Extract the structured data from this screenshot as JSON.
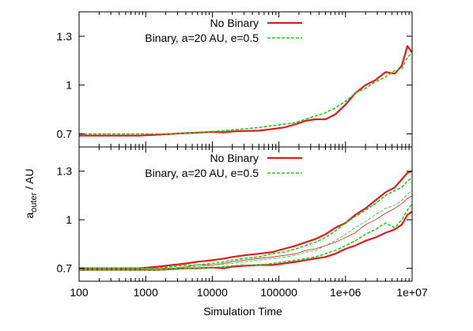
{
  "chart_data": [
    {
      "type": "line",
      "panel": "top",
      "xscale": "log",
      "xlim": [
        100,
        10000000
      ],
      "ylim": [
        0.62,
        1.45
      ],
      "yticks": [
        {
          "v": 0.7,
          "label": "0.7"
        },
        {
          "v": 1.0,
          "label": "1"
        },
        {
          "v": 1.3,
          "label": "1.3"
        }
      ],
      "legend": "top-center",
      "series": [
        {
          "name": "No Binary",
          "color": "#e31a1c",
          "dash": "solid",
          "width": 2.2,
          "in_legend": true,
          "x": [
            100,
            200,
            400,
            800,
            1500,
            2500,
            4000,
            6000,
            10000,
            15000,
            20000,
            30000,
            50000,
            80000,
            120000,
            180000,
            250000,
            350000,
            500000,
            700000,
            1000000,
            1400000,
            2000000,
            2800000,
            4000000,
            5500000,
            7000000,
            8500000,
            10000000
          ],
          "y": [
            0.69,
            0.69,
            0.69,
            0.69,
            0.695,
            0.7,
            0.705,
            0.708,
            0.712,
            0.71,
            0.715,
            0.718,
            0.72,
            0.73,
            0.74,
            0.76,
            0.78,
            0.79,
            0.79,
            0.82,
            0.88,
            0.95,
            1.0,
            1.03,
            1.08,
            1.07,
            1.12,
            1.24,
            1.2
          ]
        },
        {
          "name": "Binary, a=20 AU, e=0.5",
          "color": "#22cc22",
          "dash": "dashed",
          "width": 1.6,
          "in_legend": true,
          "x": [
            100,
            200,
            400,
            800,
            1500,
            2500,
            4000,
            6000,
            10000,
            15000,
            20000,
            30000,
            50000,
            80000,
            120000,
            180000,
            250000,
            350000,
            500000,
            700000,
            1000000,
            1400000,
            2000000,
            2800000,
            4000000,
            5500000,
            7000000,
            8500000,
            10000000
          ],
          "y": [
            0.7,
            0.7,
            0.7,
            0.7,
            0.7,
            0.7,
            0.705,
            0.71,
            0.715,
            0.72,
            0.725,
            0.73,
            0.74,
            0.75,
            0.76,
            0.77,
            0.79,
            0.81,
            0.83,
            0.86,
            0.9,
            0.95,
            0.98,
            1.02,
            1.05,
            1.09,
            1.1,
            1.17,
            1.2
          ]
        }
      ]
    },
    {
      "type": "line",
      "panel": "bottom",
      "xscale": "log",
      "xlim": [
        100,
        10000000
      ],
      "ylim": [
        0.62,
        1.45
      ],
      "yticks": [
        {
          "v": 0.7,
          "label": "0.7"
        },
        {
          "v": 1.0,
          "label": "1"
        },
        {
          "v": 1.3,
          "label": "1.3"
        }
      ],
      "xticks": [
        {
          "v": 100,
          "label": "100"
        },
        {
          "v": 1000,
          "label": "1000"
        },
        {
          "v": 10000,
          "label": "10000"
        },
        {
          "v": 100000,
          "label": "100000"
        },
        {
          "v": 1000000,
          "label": "1e+06"
        },
        {
          "v": 10000000,
          "label": "1e+07"
        }
      ],
      "legend": "top-center",
      "series": [
        {
          "name": "No Binary",
          "color": "#e31a1c",
          "dash": "solid",
          "width": 2.2,
          "in_legend": true,
          "x": [
            100,
            200,
            400,
            800,
            1500,
            2500,
            4000,
            6000,
            10000,
            15000,
            20000,
            30000,
            50000,
            80000,
            120000,
            180000,
            250000,
            350000,
            500000,
            700000,
            1000000,
            1400000,
            2000000,
            2800000,
            4000000,
            5500000,
            7000000,
            8500000,
            10000000
          ],
          "y": [
            0.7,
            0.7,
            0.7,
            0.7,
            0.71,
            0.72,
            0.73,
            0.74,
            0.75,
            0.76,
            0.77,
            0.78,
            0.79,
            0.8,
            0.82,
            0.84,
            0.86,
            0.88,
            0.91,
            0.95,
            0.98,
            1.03,
            1.07,
            1.12,
            1.17,
            1.2,
            1.25,
            1.29,
            1.3
          ]
        },
        {
          "name": "",
          "color": "#e31a1c",
          "dash": "solid",
          "width": 2.2,
          "in_legend": false,
          "x": [
            100,
            200,
            400,
            800,
            1500,
            2500,
            4000,
            6000,
            10000,
            15000,
            20000,
            30000,
            50000,
            80000,
            120000,
            180000,
            250000,
            350000,
            500000,
            700000,
            1000000,
            1400000,
            2000000,
            2800000,
            4000000,
            5500000,
            7000000,
            8500000,
            10000000
          ],
          "y": [
            0.69,
            0.69,
            0.69,
            0.69,
            0.69,
            0.695,
            0.7,
            0.7,
            0.705,
            0.7,
            0.71,
            0.715,
            0.72,
            0.72,
            0.73,
            0.74,
            0.75,
            0.76,
            0.77,
            0.79,
            0.82,
            0.84,
            0.87,
            0.89,
            0.92,
            0.94,
            0.97,
            1.03,
            1.05
          ]
        },
        {
          "name": "",
          "color": "#e31a1c",
          "dash": "solid",
          "width": 0.8,
          "in_legend": false,
          "x": [
            100,
            200,
            400,
            800,
            1500,
            2500,
            4000,
            6000,
            10000,
            15000,
            20000,
            30000,
            50000,
            80000,
            120000,
            180000,
            250000,
            350000,
            500000,
            700000,
            1000000,
            1400000,
            2000000,
            2800000,
            4000000,
            5500000,
            7000000,
            8500000,
            10000000
          ],
          "y": [
            0.695,
            0.695,
            0.695,
            0.7,
            0.7,
            0.7,
            0.71,
            0.72,
            0.72,
            0.73,
            0.74,
            0.75,
            0.76,
            0.77,
            0.78,
            0.79,
            0.81,
            0.82,
            0.84,
            0.86,
            0.89,
            0.92,
            0.97,
            1.0,
            1.04,
            1.07,
            1.1,
            1.13,
            1.15
          ]
        },
        {
          "name": "Binary, a=20 AU, e=0.5",
          "color": "#22cc22",
          "dash": "dashed",
          "width": 1.6,
          "in_legend": true,
          "x": [
            100,
            200,
            400,
            800,
            1500,
            2500,
            4000,
            6000,
            10000,
            15000,
            20000,
            30000,
            50000,
            80000,
            120000,
            180000,
            250000,
            350000,
            500000,
            700000,
            1000000,
            1400000,
            2000000,
            2800000,
            4000000,
            5500000,
            7000000,
            8500000,
            10000000
          ],
          "y": [
            0.7,
            0.7,
            0.7,
            0.7,
            0.7,
            0.71,
            0.72,
            0.72,
            0.73,
            0.74,
            0.75,
            0.76,
            0.77,
            0.79,
            0.8,
            0.82,
            0.84,
            0.86,
            0.89,
            0.93,
            0.98,
            1.02,
            1.06,
            1.1,
            1.15,
            1.18,
            1.2,
            1.24,
            1.26
          ]
        },
        {
          "name": "",
          "color": "#22cc22",
          "dash": "dashed",
          "width": 1.6,
          "in_legend": false,
          "x": [
            100,
            200,
            400,
            800,
            1500,
            2500,
            4000,
            6000,
            10000,
            15000,
            20000,
            30000,
            50000,
            80000,
            120000,
            180000,
            250000,
            350000,
            500000,
            700000,
            1000000,
            1400000,
            2000000,
            2800000,
            4000000,
            5500000,
            7000000,
            8500000,
            10000000
          ],
          "y": [
            0.69,
            0.69,
            0.69,
            0.69,
            0.69,
            0.695,
            0.7,
            0.7,
            0.705,
            0.71,
            0.715,
            0.72,
            0.72,
            0.73,
            0.74,
            0.75,
            0.76,
            0.77,
            0.79,
            0.81,
            0.84,
            0.87,
            0.91,
            0.94,
            0.98,
            0.95,
            1.0,
            1.06,
            1.1
          ]
        },
        {
          "name": "",
          "color": "#22cc22",
          "dash": "dashed",
          "width": 0.8,
          "in_legend": false,
          "x": [
            100,
            200,
            400,
            800,
            1500,
            2500,
            4000,
            6000,
            10000,
            15000,
            20000,
            30000,
            50000,
            80000,
            120000,
            180000,
            250000,
            350000,
            500000,
            700000,
            1000000,
            1400000,
            2000000,
            2800000,
            4000000,
            5500000,
            7000000,
            8500000,
            10000000
          ],
          "y": [
            0.695,
            0.695,
            0.695,
            0.695,
            0.7,
            0.7,
            0.71,
            0.71,
            0.72,
            0.725,
            0.73,
            0.74,
            0.75,
            0.76,
            0.77,
            0.78,
            0.8,
            0.81,
            0.84,
            0.87,
            0.91,
            0.95,
            0.99,
            1.03,
            1.07,
            1.09,
            1.12,
            1.16,
            1.18
          ]
        }
      ]
    }
  ],
  "axes": {
    "ylabel_main": "a",
    "ylabel_sub": "outer",
    "ylabel_unit": " / AU",
    "xlabel": "Simulation Time"
  }
}
